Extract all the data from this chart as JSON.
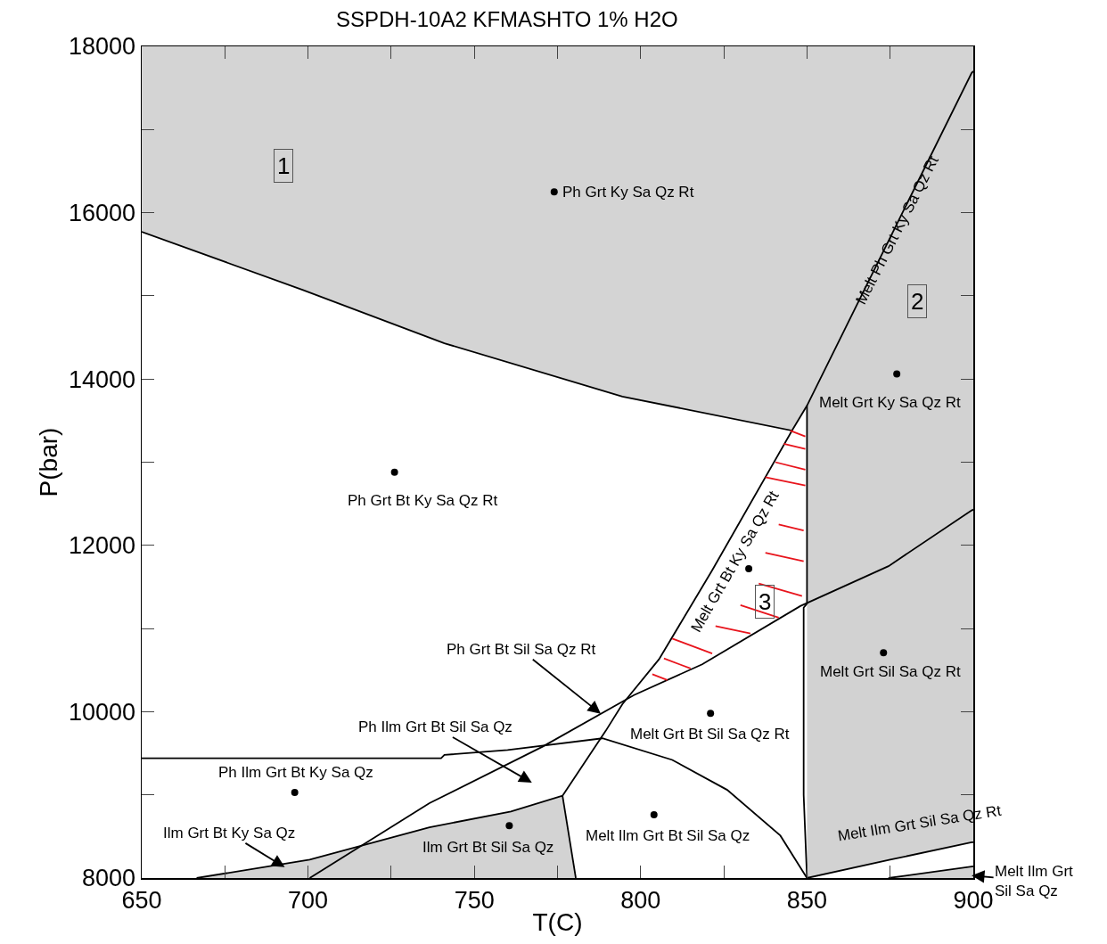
{
  "chart_data": {
    "type": "line",
    "title": "SSPDH-10A2 KFMASHTO 1% H2O",
    "xlabel": "T(C)",
    "ylabel": "P(bar)",
    "xlim": [
      650,
      900
    ],
    "ylim": [
      8000,
      18000
    ],
    "legend": false,
    "xticks": [
      650,
      {
        "value": 675,
        "label": null
      },
      700,
      {
        "value": 725,
        "label": null
      },
      750,
      {
        "value": 775,
        "label": null
      },
      800,
      {
        "value": 825,
        "label": null
      },
      850,
      {
        "value": 875,
        "label": null
      },
      900
    ],
    "yticks": [
      8000,
      {
        "value": 9000,
        "label": null
      },
      10000,
      {
        "value": 11000,
        "label": null
      },
      12000,
      {
        "value": 13000,
        "label": null
      },
      14000,
      {
        "value": 15000,
        "label": null
      },
      16000,
      {
        "value": 17000,
        "label": null
      },
      18000
    ],
    "series": [
      {
        "color": "#000000",
        "x": [
          650,
          698.5,
          741,
          794.5,
          845.5,
          850,
          899.5,
          900
        ],
        "values": [
          15770,
          15070,
          14430,
          13790,
          13380,
          13680,
          17680,
          17700
        ],
        "lower": [
          15770,
          15070,
          14430,
          13790,
          13380,
          13680,
          17680,
          17700
        ],
        "upper": [
          18000,
          18000,
          18000,
          18000,
          18000,
          18000,
          18000,
          18000
        ]
      },
      {
        "color": "#000000",
        "x": [
          666.5,
          700.5,
          736.5,
          761,
          776.5,
          780.5
        ],
        "values": [
          8000,
          8220,
          8610,
          8800,
          8990,
          8000
        ],
        "lower": [
          8000,
          8000,
          8000,
          8000,
          8000,
          8000
        ],
        "upper": [
          8000,
          8220,
          8610,
          8800,
          8990,
          8000
        ]
      },
      {
        "color": "#000000",
        "x": [
          850,
          875,
          899.5,
          900
        ],
        "values": [
          8000,
          8220,
          8430,
          8430
        ],
        "lower": [
          8000,
          8220,
          8430,
          8430
        ],
        "upper": [
          13680,
          15710,
          17680,
          17700
        ]
      },
      {
        "color": "#000000",
        "x": [
          874.5,
          900
        ],
        "values": [
          8000,
          8140
        ],
        "lower": [
          8000,
          8000
        ],
        "upper": [
          8000,
          8140
        ]
      },
      {
        "color": "#000000",
        "x": [
          845.5,
          821.5,
          805.5,
          794.5,
          789.5,
          776.5
        ],
        "values": [
          13380,
          11700,
          10630,
          10090,
          9770,
          8990
        ]
      },
      {
        "color": "#000000",
        "x": [
          850,
          850,
          849,
          849,
          850
        ],
        "values": [
          13680,
          11300,
          11250,
          9000,
          8000
        ]
      },
      {
        "color": "#000000",
        "x": [
          700.5,
          736.5,
          770.5,
          798,
          818.5,
          848,
          874.5,
          899.5,
          900
        ],
        "values": [
          8000,
          8900,
          9580,
          10200,
          10570,
          11270,
          11750,
          12420,
          12430
        ]
      },
      {
        "color": "#000000",
        "x": [
          650,
          740,
          741,
          760,
          788.5,
          809.5,
          826,
          842,
          850
        ],
        "values": [
          9440,
          9440,
          9480,
          9540,
          9680,
          9420,
          9060,
          8510,
          8000
        ]
      },
      {
        "color": "#e8141c",
        "x": [
          845,
          849.5,
          null,
          843,
          849.5,
          null,
          840.5,
          849.5,
          null,
          837.5,
          849.5,
          null,
          841.5,
          849,
          null,
          837.5,
          849,
          null,
          835.5,
          848.5,
          null,
          830,
          841.5,
          null,
          822.5,
          833,
          null,
          809.5,
          821.5,
          null,
          807,
          815,
          null,
          803.5,
          808
        ],
        "values": [
          13380,
          13310,
          null,
          13220,
          13160,
          null,
          13000,
          12910,
          null,
          12820,
          12720,
          null,
          12250,
          12180,
          null,
          11910,
          11810,
          null,
          11540,
          11390,
          null,
          11280,
          11130,
          null,
          11030,
          10940,
          null,
          10880,
          10700,
          null,
          10640,
          10520,
          null,
          10450,
          10380
        ]
      },
      {
        "type": "scatter",
        "color": "#000000",
        "marker": "circle",
        "x": [
          774,
          726,
          877,
          873,
          832.5,
          821,
          696,
          760.5,
          804
        ],
        "values": [
          16250,
          12880,
          14060,
          10710,
          11720,
          9980,
          9030,
          8630,
          8760
        ]
      }
    ],
    "annotations": [
      "Ph Grt Ky Sa Qz Rt",
      "1",
      "Ph Grt Bt Ky Sa Qz Rt",
      "Melt Ph Grt Ky Sa Qz Rt",
      "2",
      "Melt Grt Ky Sa Qz Rt",
      "Melt Grt Bt Ky Sa Qz Rt",
      "3",
      "Melt Grt Sil Sa Qz Rt",
      {
        "text": "Ph Grt Bt Sil Sa Qz Rt",
        "x": 788,
        "y": 9975
      },
      "Melt Grt Bt Sil Sa Qz Rt",
      "Ph Ilm Grt Bt Sil Sa Qz",
      "Ph Ilm Grt Bt Ky Sa Qz",
      {
        "text": "Ilm Grt Bt Ky Sa Qz",
        "x": 693,
        "y": 8130
      },
      "Ilm Grt Bt Sil Sa Qz",
      "Melt Ilm Grt Bt Sil Sa Qz",
      "Melt Ilm Grt Sil Sa Qz Rt",
      {
        "text": "Melt Ilm Grt\nSil Sa Qz",
        "x": 899.5,
        "y": 8030
      }
    ]
  }
}
